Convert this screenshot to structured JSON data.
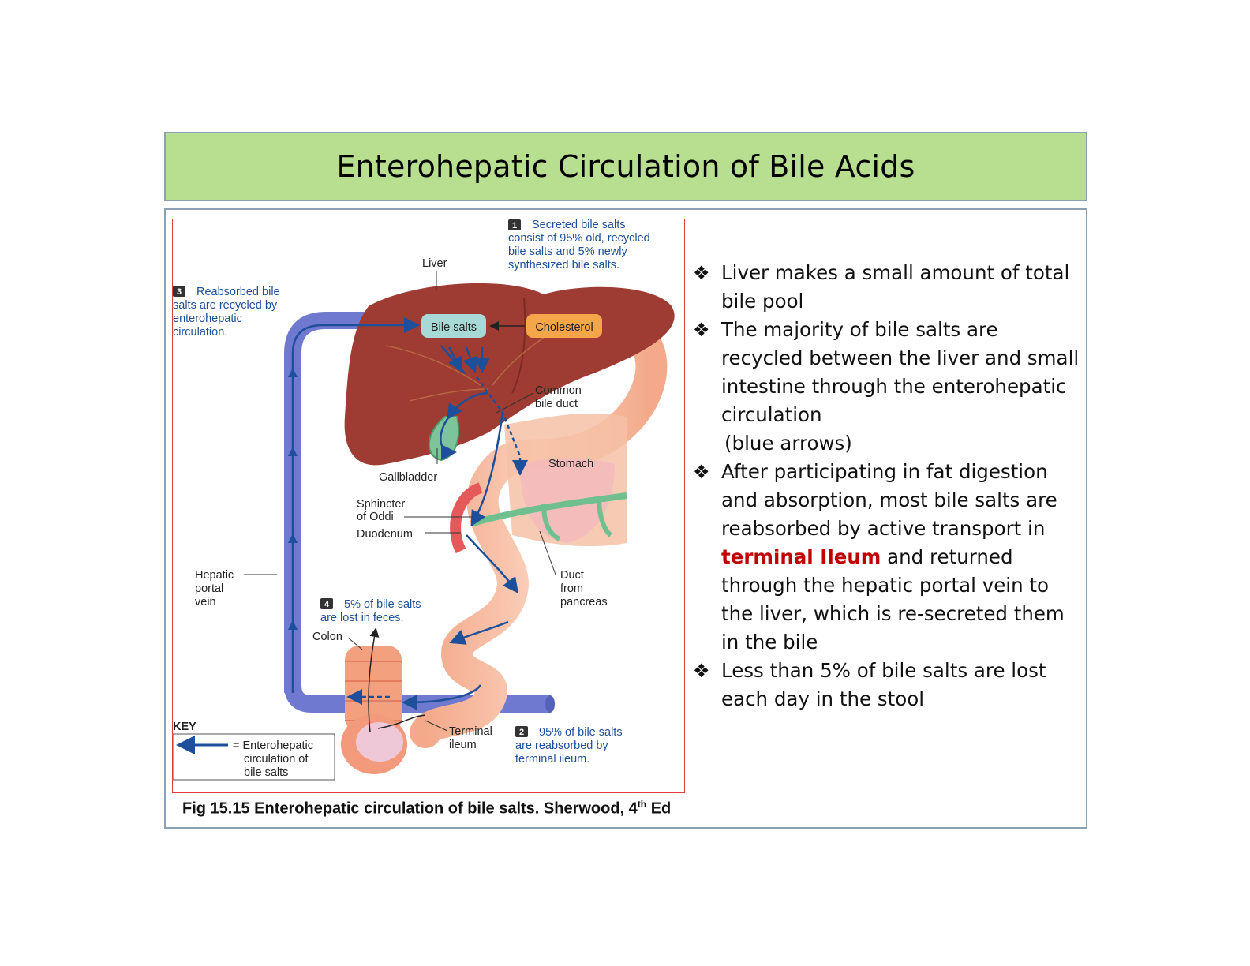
{
  "title": "Enterohepatic Circulation of Bile Acids",
  "figure": {
    "labels": {
      "liver": "Liver",
      "bile_salts": "Bile salts",
      "cholesterol": "Cholesterol",
      "common_bile_duct_1": "Common",
      "common_bile_duct_2": "bile duct",
      "stomach": "Stomach",
      "gallbladder": "Gallbladder",
      "sphincter_1": "Sphincter",
      "sphincter_2": "of Oddi",
      "duodenum": "Duodenum",
      "duct_1": "Duct",
      "duct_2": "from",
      "duct_3": "pancreas",
      "hepatic_1": "Hepatic",
      "hepatic_2": "portal",
      "hepatic_3": "vein",
      "colon": "Colon",
      "terminal_1": "Terminal",
      "terminal_2": "ileum"
    },
    "notes": {
      "n1": [
        "Secreted bile salts",
        "consist of 95% old, recycled",
        "bile salts and 5% newly",
        "synthesized bile salts."
      ],
      "n2": [
        "95% of bile salts",
        "are reabsorbed by",
        "terminal ileum."
      ],
      "n3": [
        "Reabsorbed bile",
        "salts are recycled by",
        "enterohepatic",
        "circulation."
      ],
      "n4": [
        "5% of bile salts",
        "are lost in feces."
      ]
    },
    "numbers": {
      "n1": "1",
      "n2": "2",
      "n3": "3",
      "n4": "4"
    },
    "key": {
      "title": "KEY",
      "line1": "= Enterohepatic",
      "line2": "circulation of",
      "line3": "bile salts"
    }
  },
  "caption": {
    "text": "Fig 15.15 Enterohepatic circulation of bile salts.  Sherwood, 4",
    "sup": "th",
    "tail": " Ed"
  },
  "bullets": {
    "b1": "Liver makes a small amount of total bile pool",
    "b2": "The majority of bile salts are recycled between the liver and small intestine through the enterohepatic circulation",
    "b2_tail": "(blue arrows)",
    "b3_pre": "After participating in fat digestion and absorption, most bile salts are reabsorbed by active transport in",
    "b3_red": "terminal Ileum",
    "b3_post": "and returned through the hepatic portal vein to the liver, which is re-secreted them in the bile",
    "b4": "Less than 5% of bile salts are lost each day in the stool"
  },
  "colors": {
    "title_bg": "#b8df8f",
    "liver": "#9e3b33",
    "portal_vein": "#6f79d0",
    "arrow_blue": "#1d4f9a",
    "highlight_red": "#c00000"
  }
}
